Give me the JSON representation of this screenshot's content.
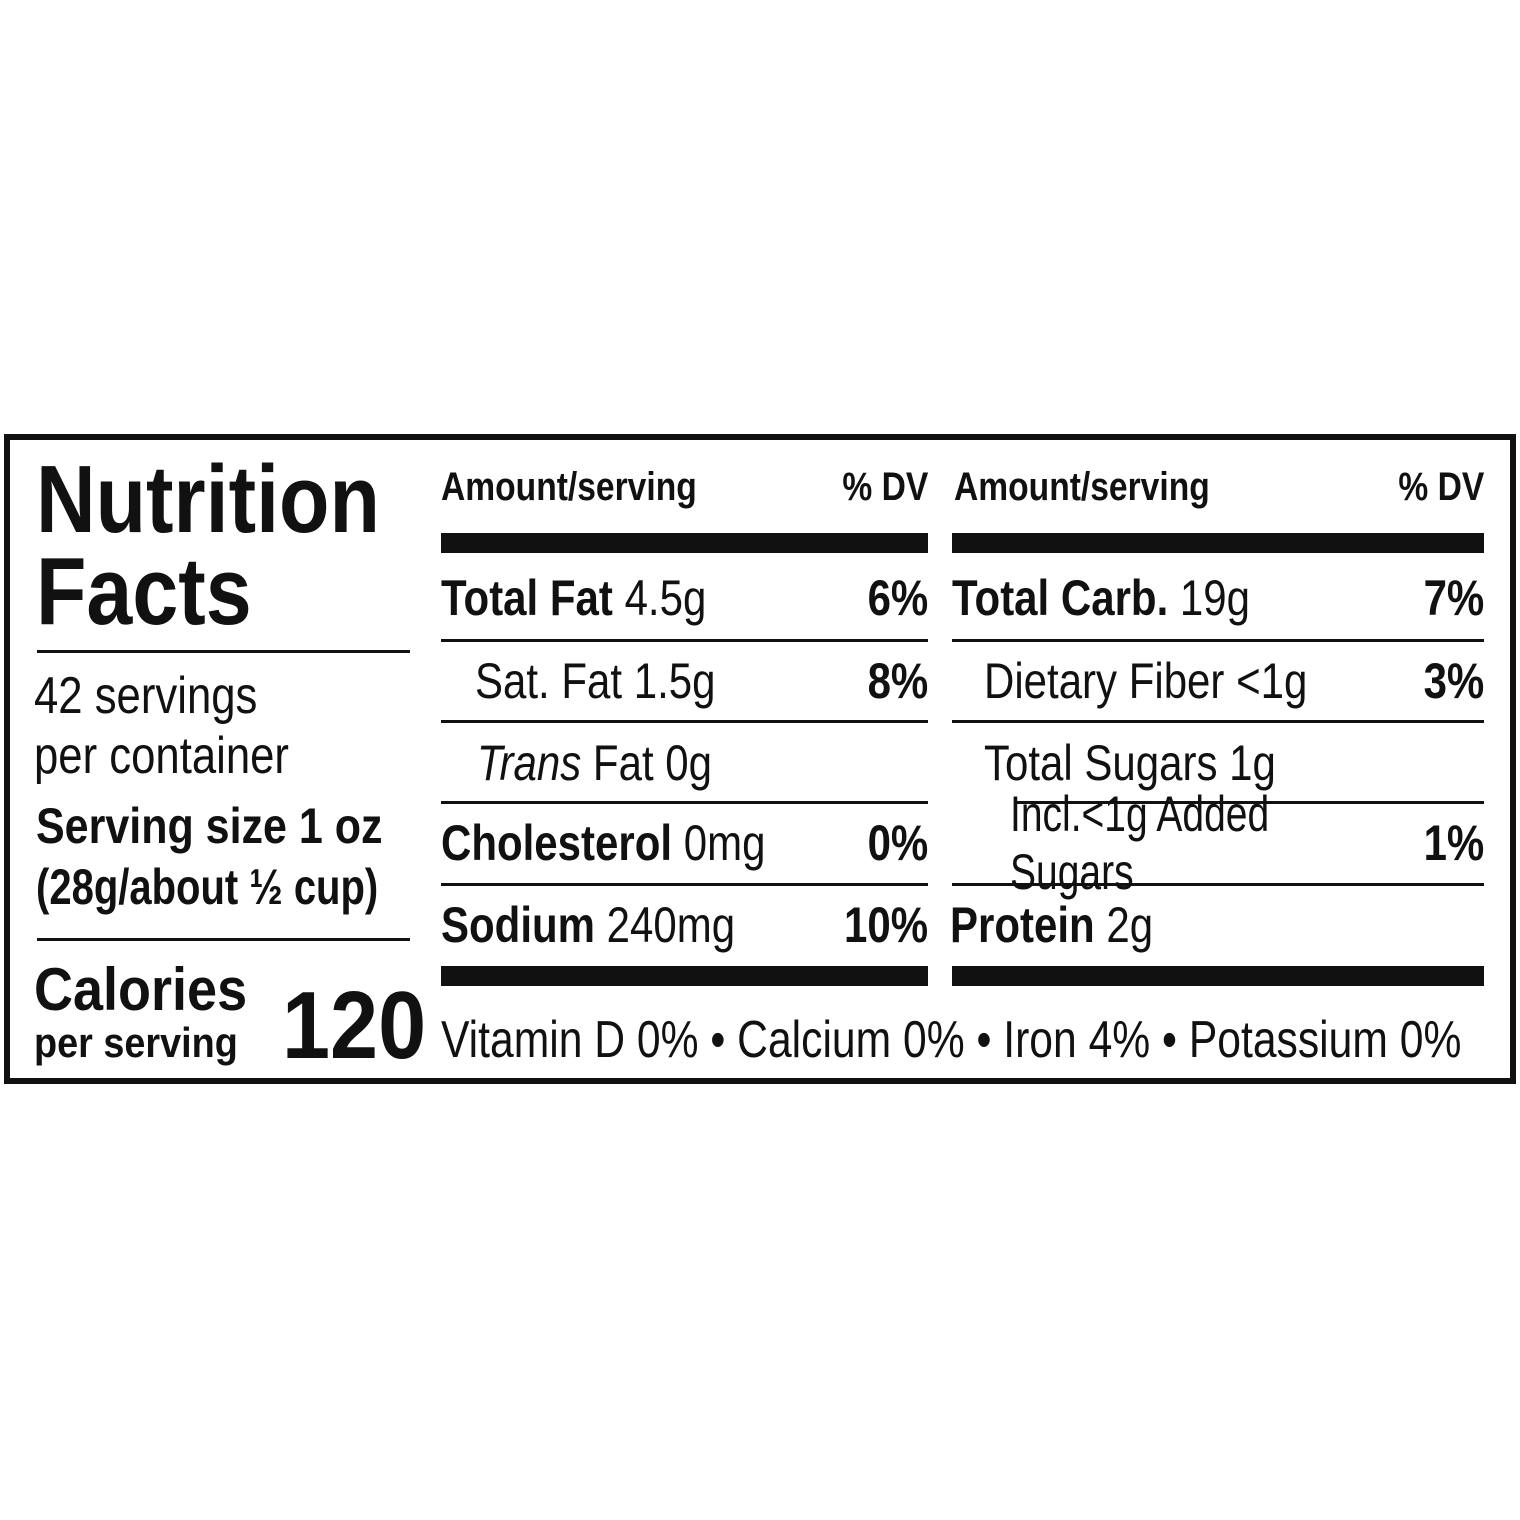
{
  "title": [
    "Nutrition",
    "Facts"
  ],
  "servings": [
    "42 servings",
    "per container"
  ],
  "serving_size": [
    "Serving size 1 oz",
    "(28g/about ½ cup)"
  ],
  "calories": {
    "label": "Calories",
    "sub": "per serving",
    "value": "120"
  },
  "columns": [
    {
      "header": {
        "amount": "Amount/serving",
        "dv": "% DV"
      },
      "rows": [
        {
          "name": "Total Fat",
          "amount": "4.5g",
          "dv": "6%",
          "bold": true
        },
        {
          "name": "Sat. Fat",
          "amount": "1.5g",
          "dv": "8%",
          "bold": false
        },
        {
          "name": "Trans",
          "amount": "Fat 0g",
          "dv": "",
          "bold": false
        },
        {
          "name": "Cholesterol",
          "amount": "0mg",
          "dv": "0%",
          "bold": true
        },
        {
          "name": "Sodium",
          "amount": "240mg",
          "dv": "10%",
          "bold": true
        }
      ]
    },
    {
      "header": {
        "amount": "Amount/serving",
        "dv": "% DV"
      },
      "rows": [
        {
          "name": "Total Carb.",
          "amount": "19g",
          "dv": "7%",
          "bold": true
        },
        {
          "name": "Dietary Fiber",
          "amount": "<1g",
          "dv": "3%",
          "bold": false
        },
        {
          "name": "Total Sugars",
          "amount": "1g",
          "dv": "",
          "bold": false
        },
        {
          "name": "Incl.<1g",
          "amount": "Added Sugars",
          "dv": "1%",
          "bold": false
        },
        {
          "name": "Protein",
          "amount": "2g",
          "dv": "",
          "bold": true
        }
      ]
    }
  ],
  "vitamins": "Vitamin D 0% • Calcium 0% • Iron 4% • Potassium 0%"
}
